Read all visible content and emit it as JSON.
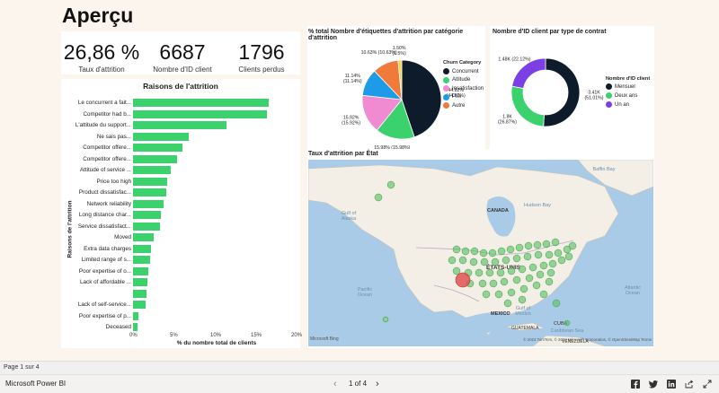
{
  "page": {
    "title": "Aperçu"
  },
  "kpis": [
    {
      "value": "26,86 %",
      "label": "Taux d'attrition"
    },
    {
      "value": "6687",
      "label": "Nombre d'ID client"
    },
    {
      "value": "1796",
      "label": "Clients perdus"
    }
  ],
  "reasons_chart": {
    "title": "Raisons de l'attrition",
    "ylabel": "Raisons de l'attrition",
    "xlabel": "% du nombre total de clients",
    "ticks": [
      "0%",
      "5%",
      "10%",
      "15%",
      "20%"
    ]
  },
  "pie_chart": {
    "title": "% total Nombre d'étiquettes d'attrition par catégorie d'attrition",
    "legend_title": "Churn Category"
  },
  "donut_chart": {
    "title": "Nombre d'ID client par type de contrat",
    "legend_title": "Nombre d'ID client"
  },
  "map": {
    "title": "Taux d'attrition par État",
    "labels": {
      "canada": "CANADA",
      "usa": "ÉTATS-UNIS",
      "mexico": "MEXICO",
      "cuba": "CUBA",
      "venezuela": "VENEZUELA",
      "guatemala": "GUATEMALA",
      "hudson": "Hudson Bay",
      "baffin": "Baffin Bay",
      "gulf": "Gulf of Mexico",
      "caribbean": "Caribbean Sea",
      "gulf_alaska": "Gulf of Alaska",
      "pacific": "Pacific Ocean",
      "atlantic": "Atlantic Ocean"
    },
    "attribution": "© 2023 TomTom, © 2023 Microsoft Corporation, © OpenStreetMap  Terms",
    "logo": "Microsoft Bing"
  },
  "statusbar": {
    "page_label": "Page 1 sur 4"
  },
  "footer": {
    "app_name": "Microsoft Power BI",
    "pager": "1 of 4"
  },
  "chart_data": [
    {
      "type": "bar",
      "title": "Raisons de l'attrition",
      "xlabel": "% du nombre total de clients",
      "ylabel": "Raisons de l'attrition",
      "xlim": [
        0,
        20
      ],
      "categories": [
        "Le concurrent a fait...",
        "Competitor had b...",
        "L'attitude du support...",
        "Ne sais pas...",
        "Competitor offere...",
        "Competitor offere...",
        "Attitude of service ...",
        "Price too high",
        "Product dissatisfac...",
        "Network reliability",
        "Long distance char...",
        "Service dissatisfact...",
        "Moved",
        "Extra data charges",
        "Limited range of s...",
        "Poor expertise of o...",
        "Lack of affordable ...",
        "",
        "Lack of self-service...",
        "Poor expertise of p...",
        "Deceased"
      ],
      "values": [
        16.8,
        16.5,
        11.5,
        6.9,
        6.1,
        5.4,
        4.7,
        4.2,
        4.1,
        3.8,
        3.4,
        3.3,
        2.5,
        2.2,
        2.1,
        1.9,
        1.8,
        1.7,
        1.5,
        0.7,
        0.5
      ]
    },
    {
      "type": "pie",
      "title": "% total Nombre d'étiquettes d'attrition par catégorie d'attrition",
      "legend_title": "Churn Category",
      "series": [
        {
          "name": "Concurrent",
          "value": 44.82,
          "label": "44.82%\n(44.82%)",
          "color": "#0d1b2a"
        },
        {
          "name": "Attitude",
          "value": 15.98,
          "label": "15.98% (15.98%)",
          "color": "#3bd16c"
        },
        {
          "name": "Insatisfaction",
          "value": 15.92,
          "label": "15.92%\n(15.92%)",
          "color": "#f08bd2"
        },
        {
          "name": "Prix",
          "value": 11.14,
          "label": "11.14%\n(11.14%)",
          "color": "#1e9be8"
        },
        {
          "name": "Autre",
          "value": 10.63,
          "label": "10.63% (10.63%)",
          "color": "#f07a3a"
        },
        {
          "name": "",
          "value": 1.5,
          "label": "1.50%\n(1.5%)",
          "color": "#f5d34a"
        }
      ]
    },
    {
      "type": "pie",
      "title": "Nombre d'ID client par type de contrat",
      "legend_title": "Nombre d'ID client",
      "series": [
        {
          "name": "Mensuel",
          "value": 3.41,
          "label": "3.41K\n(51.01%)",
          "color": "#0d1b2a"
        },
        {
          "name": "Deux ans",
          "value": 1.8,
          "label": "1.8K\n(26.87%)",
          "color": "#3bd16c"
        },
        {
          "name": "Un an",
          "value": 1.48,
          "label": "1.48K (22.12%)",
          "color": "#7b3fe4"
        }
      ]
    }
  ]
}
